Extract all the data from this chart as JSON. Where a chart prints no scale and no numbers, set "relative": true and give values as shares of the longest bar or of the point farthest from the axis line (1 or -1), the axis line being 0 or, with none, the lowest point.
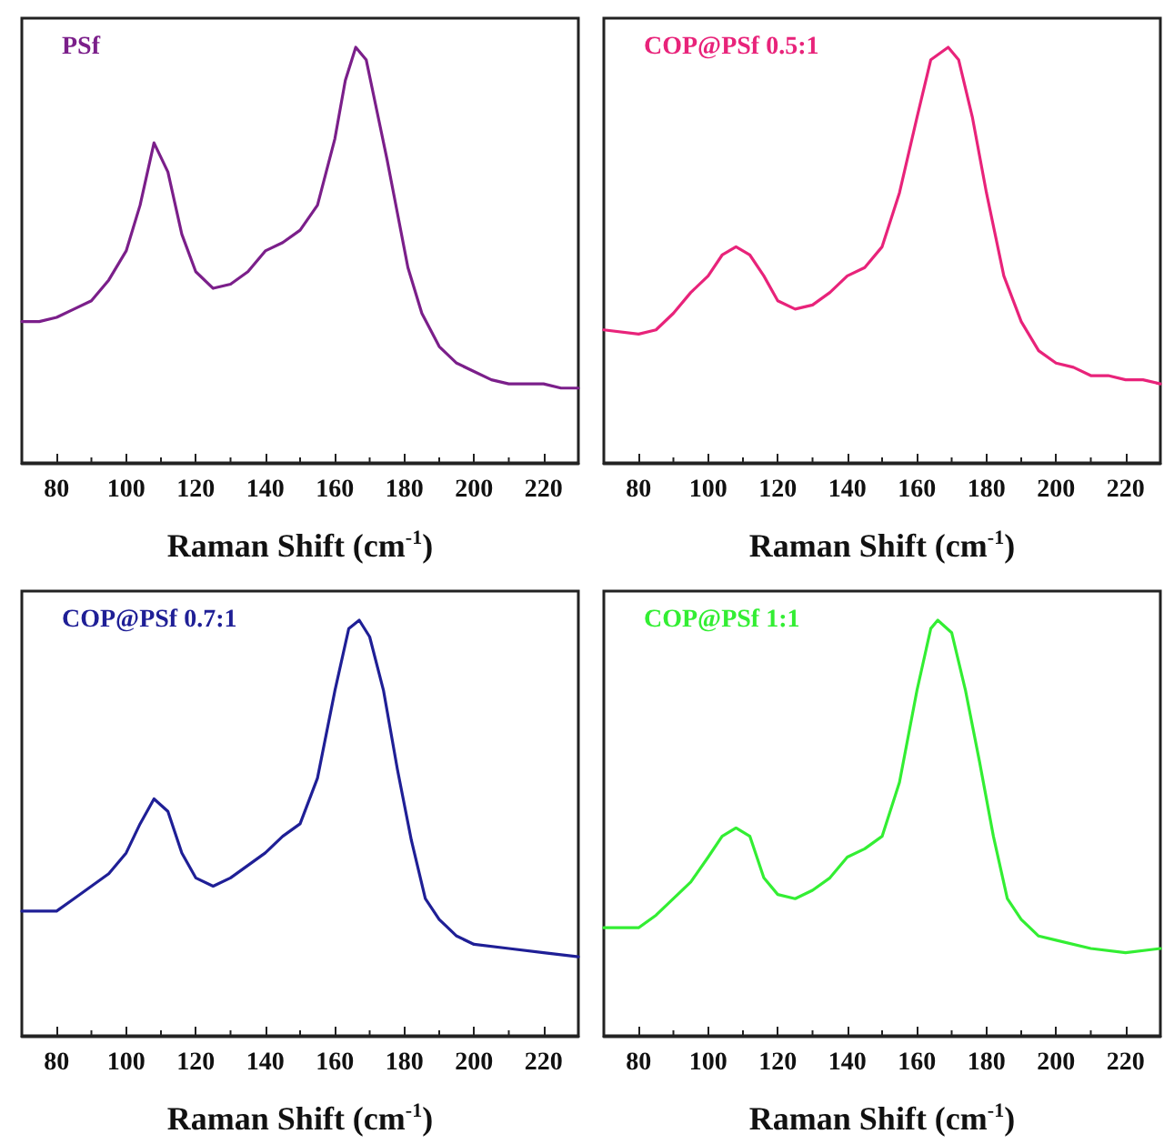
{
  "chart_data": [
    {
      "type": "line",
      "relative": true,
      "xlabel": "Raman Shift (cm$^{-1}$)",
      "xlim": [
        70,
        230
      ],
      "xticks": [
        80,
        100,
        120,
        140,
        160,
        180,
        200,
        220
      ],
      "tick_labels": "x",
      "grid": false,
      "legend": "top left",
      "marker": "none",
      "line_style": "solid",
      "x": [
        70,
        75,
        80,
        85,
        90,
        95,
        100,
        104,
        108,
        112,
        116,
        120,
        125,
        130,
        135,
        140,
        145,
        150,
        155,
        160,
        163,
        166,
        169,
        172,
        175,
        178,
        181,
        185,
        190,
        195,
        200,
        205,
        210,
        215,
        220,
        225,
        230
      ],
      "series": [
        {
          "name": "PSf",
          "color": "#7b1f8a",
          "values": [
            0.34,
            0.34,
            0.35,
            0.37,
            0.39,
            0.44,
            0.51,
            0.62,
            0.77,
            0.7,
            0.55,
            0.46,
            0.42,
            0.43,
            0.46,
            0.51,
            0.53,
            0.56,
            0.62,
            0.78,
            0.92,
            1,
            0.97,
            0.85,
            0.73,
            0.6,
            0.47,
            0.36,
            0.28,
            0.24,
            0.22,
            0.2,
            0.19,
            0.19,
            0.19,
            0.18,
            0.18
          ]
        }
      ]
    },
    {
      "type": "line",
      "relative": true,
      "xlabel": "Raman Shift (cm$^{-1}$)",
      "xlim": [
        70,
        230
      ],
      "xticks": [
        80,
        100,
        120,
        140,
        160,
        180,
        200,
        220
      ],
      "tick_labels": "x",
      "grid": false,
      "legend": "top left",
      "marker": "none",
      "line_style": "solid",
      "x": [
        70,
        80,
        85,
        90,
        95,
        100,
        104,
        108,
        112,
        116,
        120,
        125,
        130,
        135,
        140,
        145,
        150,
        155,
        160,
        164,
        169,
        172,
        176,
        180,
        185,
        190,
        195,
        200,
        205,
        210,
        215,
        220,
        225,
        230
      ],
      "series": [
        {
          "name": "COP@PSf 0.5:1",
          "color": "#e8237a",
          "values": [
            0.32,
            0.31,
            0.32,
            0.36,
            0.41,
            0.45,
            0.5,
            0.52,
            0.5,
            0.45,
            0.39,
            0.37,
            0.38,
            0.41,
            0.45,
            0.47,
            0.52,
            0.65,
            0.83,
            0.97,
            1,
            0.97,
            0.83,
            0.65,
            0.45,
            0.34,
            0.27,
            0.24,
            0.23,
            0.21,
            0.21,
            0.2,
            0.2,
            0.19
          ]
        }
      ]
    },
    {
      "type": "line",
      "relative": true,
      "xlabel": "Raman Shift (cm$^{-1}$)",
      "xlim": [
        70,
        230
      ],
      "xticks": [
        80,
        100,
        120,
        140,
        160,
        180,
        200,
        220
      ],
      "tick_labels": "x",
      "grid": false,
      "legend": "top left",
      "marker": "none",
      "line_style": "solid",
      "x": [
        70,
        80,
        85,
        90,
        95,
        100,
        104,
        108,
        112,
        116,
        120,
        125,
        130,
        135,
        140,
        145,
        150,
        155,
        160,
        164,
        167,
        170,
        174,
        178,
        182,
        186,
        190,
        195,
        200,
        210,
        220,
        230
      ],
      "series": [
        {
          "name": "COP@PSf 0.7:1",
          "color": "#1f1f96",
          "values": [
            0.3,
            0.3,
            0.33,
            0.36,
            0.39,
            0.44,
            0.51,
            0.57,
            0.54,
            0.44,
            0.38,
            0.36,
            0.38,
            0.41,
            0.44,
            0.48,
            0.51,
            0.62,
            0.83,
            0.98,
            1,
            0.96,
            0.83,
            0.64,
            0.47,
            0.33,
            0.28,
            0.24,
            0.22,
            0.21,
            0.2,
            0.19
          ]
        }
      ]
    },
    {
      "type": "line",
      "relative": true,
      "xlabel": "Raman Shift (cm$^{-1}$)",
      "xlim": [
        70,
        230
      ],
      "xticks": [
        80,
        100,
        120,
        140,
        160,
        180,
        200,
        220
      ],
      "tick_labels": "x",
      "grid": false,
      "legend": "top left",
      "marker": "none",
      "line_style": "solid",
      "x": [
        70,
        75,
        80,
        85,
        90,
        95,
        100,
        104,
        108,
        112,
        116,
        120,
        125,
        130,
        135,
        140,
        145,
        150,
        155,
        160,
        164,
        166,
        170,
        174,
        178,
        182,
        186,
        190,
        195,
        200,
        210,
        220,
        230
      ],
      "series": [
        {
          "name": "COP@PSf 1:1",
          "color": "#33ee33",
          "values": [
            0.26,
            0.26,
            0.26,
            0.29,
            0.33,
            0.37,
            0.43,
            0.48,
            0.5,
            0.48,
            0.38,
            0.34,
            0.33,
            0.35,
            0.38,
            0.43,
            0.45,
            0.48,
            0.61,
            0.83,
            0.98,
            1,
            0.97,
            0.83,
            0.66,
            0.48,
            0.33,
            0.28,
            0.24,
            0.23,
            0.21,
            0.2,
            0.21
          ]
        }
      ]
    }
  ]
}
